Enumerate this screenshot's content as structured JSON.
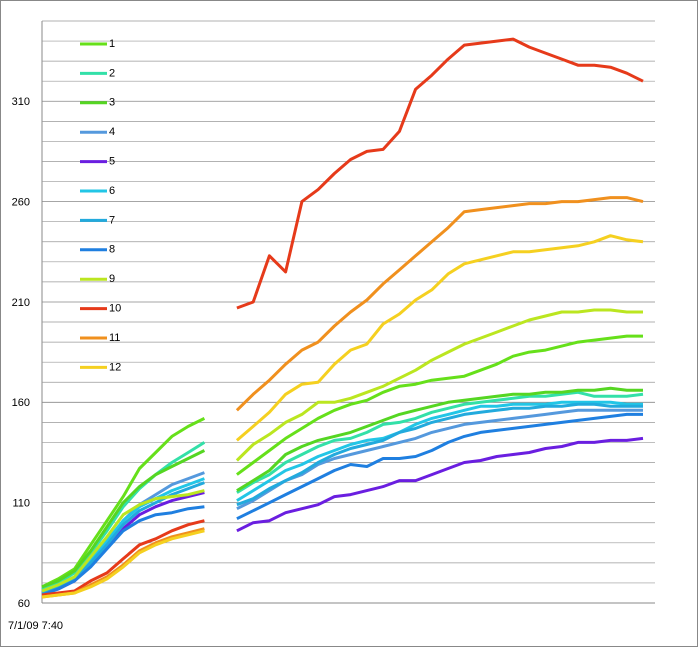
{
  "chart_data": {
    "type": "line",
    "categories": [
      "7/1/09 7:40",
      null,
      null,
      null,
      null,
      null,
      null,
      null,
      null,
      null,
      null,
      null,
      null,
      null,
      null,
      null,
      null,
      null,
      null,
      null,
      null,
      null,
      null,
      null,
      null,
      null,
      null,
      null,
      null,
      null,
      null,
      null,
      null,
      null,
      null,
      null,
      null,
      null
    ],
    "ylim": [
      60,
      350
    ],
    "yticks": [
      60,
      110,
      160,
      210,
      260,
      310
    ],
    "minor_yticks": [
      70,
      80,
      90,
      100,
      120,
      130,
      140,
      150,
      170,
      180,
      190,
      200,
      220,
      230,
      240,
      250,
      270,
      280,
      290,
      300,
      320,
      330,
      340,
      350
    ],
    "grid": true,
    "legend": "upper left",
    "series": [
      {
        "name": "1",
        "color": "#66e01a",
        "values": [
          68,
          72,
          77,
          89,
          101,
          113,
          127,
          135,
          143,
          148,
          152,
          null,
          124,
          130,
          136,
          142,
          147,
          152,
          156,
          159,
          161,
          165,
          168,
          169,
          171,
          172,
          173,
          176,
          179,
          183,
          185,
          186,
          188,
          190,
          191,
          192,
          193,
          193
        ]
      },
      {
        "name": "2",
        "color": "#33e0a8",
        "values": [
          67,
          70,
          75,
          85,
          96,
          108,
          117,
          124,
          130,
          135,
          140,
          null,
          115,
          120,
          124,
          130,
          134,
          138,
          141,
          142,
          145,
          149,
          150,
          152,
          155,
          157,
          159,
          160,
          161,
          162,
          163,
          163,
          164,
          165,
          163,
          163,
          163,
          164
        ]
      },
      {
        "name": "3",
        "color": "#55d622",
        "values": [
          68,
          71,
          76,
          86,
          98,
          110,
          118,
          124,
          128,
          132,
          136,
          null,
          116,
          121,
          126,
          134,
          138,
          141,
          143,
          145,
          148,
          151,
          154,
          156,
          158,
          160,
          161,
          162,
          163,
          164,
          164,
          165,
          165,
          166,
          166,
          167,
          166,
          166
        ]
      },
      {
        "name": "4",
        "color": "#5599dd",
        "values": [
          65,
          68,
          72,
          80,
          90,
          101,
          109,
          114,
          119,
          122,
          125,
          null,
          107,
          111,
          116,
          121,
          124,
          129,
          132,
          134,
          136,
          138,
          140,
          142,
          145,
          147,
          149,
          150,
          151,
          152,
          153,
          154,
          155,
          156,
          156,
          156,
          156,
          156
        ]
      },
      {
        "name": "5",
        "color": "#6a1ee0",
        "values": [
          65,
          67,
          71,
          79,
          88,
          97,
          104,
          108,
          111,
          113,
          115,
          null,
          96,
          100,
          101,
          105,
          107,
          109,
          113,
          114,
          116,
          118,
          121,
          121,
          124,
          127,
          130,
          131,
          133,
          134,
          135,
          137,
          138,
          140,
          140,
          141,
          141,
          142
        ]
      },
      {
        "name": "6",
        "color": "#22c6e6",
        "values": [
          66,
          68,
          73,
          81,
          91,
          101,
          108,
          112,
          116,
          119,
          122,
          null,
          111,
          116,
          121,
          126,
          129,
          133,
          136,
          139,
          141,
          142,
          145,
          149,
          152,
          154,
          156,
          158,
          158,
          159,
          159,
          159,
          160,
          160,
          160,
          160,
          159,
          159
        ]
      },
      {
        "name": "7",
        "color": "#22aadd",
        "values": [
          65,
          68,
          72,
          80,
          89,
          99,
          106,
          110,
          114,
          117,
          120,
          null,
          109,
          112,
          117,
          121,
          125,
          130,
          134,
          137,
          139,
          141,
          145,
          147,
          150,
          152,
          154,
          155,
          156,
          157,
          157,
          158,
          158,
          159,
          159,
          158,
          158,
          158
        ]
      },
      {
        "name": "8",
        "color": "#1f7fe0",
        "values": [
          64,
          67,
          71,
          78,
          87,
          96,
          101,
          104,
          105,
          107,
          108,
          null,
          102,
          106,
          110,
          114,
          118,
          122,
          126,
          129,
          128,
          132,
          132,
          133,
          136,
          140,
          143,
          145,
          146,
          147,
          148,
          149,
          150,
          151,
          152,
          153,
          154,
          154
        ]
      },
      {
        "name": "9",
        "color": "#bbe620",
        "values": [
          66,
          69,
          73,
          83,
          93,
          104,
          109,
          112,
          113,
          114,
          116,
          null,
          131,
          139,
          144,
          150,
          154,
          160,
          160,
          162,
          165,
          168,
          172,
          176,
          181,
          185,
          189,
          192,
          195,
          198,
          201,
          203,
          205,
          205,
          206,
          206,
          205,
          205
        ]
      },
      {
        "name": "10",
        "color": "#e63a1a",
        "values": [
          64,
          65,
          66,
          71,
          75,
          82,
          89,
          92,
          96,
          99,
          101,
          null,
          207,
          210,
          233,
          225,
          260,
          266,
          274,
          281,
          285,
          286,
          295,
          316,
          323,
          331,
          338,
          339,
          340,
          341,
          337,
          334,
          331,
          328,
          328,
          327,
          324,
          320
        ]
      },
      {
        "name": "11",
        "color": "#f0901e",
        "values": [
          63,
          64,
          65,
          69,
          73,
          79,
          86,
          90,
          93,
          95,
          97,
          null,
          156,
          164,
          171,
          179,
          186,
          190,
          198,
          205,
          211,
          219,
          226,
          233,
          240,
          247,
          255,
          256,
          257,
          258,
          259,
          259,
          260,
          260,
          261,
          262,
          262,
          260
        ]
      },
      {
        "name": "12",
        "color": "#f5d020",
        "values": [
          63,
          64,
          65,
          68,
          72,
          78,
          85,
          89,
          92,
          94,
          96,
          null,
          141,
          148,
          155,
          164,
          169,
          170,
          179,
          186,
          189,
          199,
          204,
          211,
          216,
          224,
          229,
          231,
          233,
          235,
          235,
          236,
          237,
          238,
          240,
          243,
          241,
          240
        ]
      }
    ]
  }
}
